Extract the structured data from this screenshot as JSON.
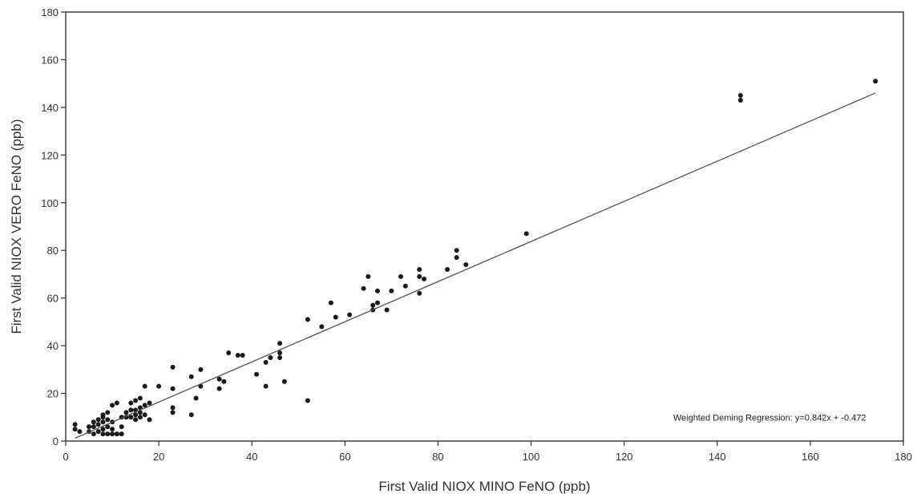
{
  "chart_data": {
    "type": "scatter",
    "title": "",
    "xlabel": "First Valid NIOX MINO FeNO (ppb)",
    "ylabel": "First Valid NIOX VERO FeNO (ppb)",
    "xlim": [
      0,
      180
    ],
    "ylim": [
      0,
      180
    ],
    "xticks": [
      0,
      20,
      40,
      60,
      80,
      100,
      120,
      140,
      160,
      180
    ],
    "yticks": [
      0,
      20,
      40,
      60,
      80,
      100,
      120,
      140,
      160,
      180
    ],
    "grid": false,
    "legend": "none",
    "annotation": "Weighted Deming Regression: y=0.842x + -0.472",
    "regression": {
      "slope": 0.842,
      "intercept": -0.472,
      "x_range": [
        2,
        174
      ]
    },
    "colors": {
      "point": "#1a1a1a",
      "line": "#555555",
      "frame": "#333333"
    },
    "points": [
      [
        2,
        5
      ],
      [
        2,
        7
      ],
      [
        3,
        4
      ],
      [
        5,
        4
      ],
      [
        5,
        6
      ],
      [
        6,
        3
      ],
      [
        6,
        6
      ],
      [
        6,
        8
      ],
      [
        7,
        4
      ],
      [
        7,
        7
      ],
      [
        7,
        9
      ],
      [
        8,
        3
      ],
      [
        8,
        5
      ],
      [
        8,
        8
      ],
      [
        8,
        10
      ],
      [
        8,
        11
      ],
      [
        9,
        3
      ],
      [
        9,
        6
      ],
      [
        9,
        9
      ],
      [
        9,
        12
      ],
      [
        10,
        3
      ],
      [
        10,
        5
      ],
      [
        10,
        8
      ],
      [
        10,
        15
      ],
      [
        11,
        3
      ],
      [
        11,
        16
      ],
      [
        12,
        3
      ],
      [
        12,
        6
      ],
      [
        12,
        10
      ],
      [
        13,
        10
      ],
      [
        13,
        12
      ],
      [
        14,
        10
      ],
      [
        14,
        13
      ],
      [
        14,
        16
      ],
      [
        15,
        9
      ],
      [
        15,
        11
      ],
      [
        15,
        13
      ],
      [
        15,
        17
      ],
      [
        16,
        10
      ],
      [
        16,
        12
      ],
      [
        16,
        14
      ],
      [
        16,
        18
      ],
      [
        17,
        11
      ],
      [
        17,
        15
      ],
      [
        17,
        23
      ],
      [
        18,
        9
      ],
      [
        18,
        16
      ],
      [
        20,
        23
      ],
      [
        23,
        12
      ],
      [
        23,
        14
      ],
      [
        23,
        22
      ],
      [
        23,
        31
      ],
      [
        27,
        11
      ],
      [
        27,
        27
      ],
      [
        28,
        18
      ],
      [
        29,
        23
      ],
      [
        29,
        30
      ],
      [
        33,
        22
      ],
      [
        33,
        26
      ],
      [
        34,
        25
      ],
      [
        35,
        37
      ],
      [
        37,
        36
      ],
      [
        38,
        36
      ],
      [
        41,
        28
      ],
      [
        43,
        23
      ],
      [
        43,
        33
      ],
      [
        44,
        35
      ],
      [
        46,
        35
      ],
      [
        46,
        37
      ],
      [
        46,
        41
      ],
      [
        47,
        25
      ],
      [
        52,
        17
      ],
      [
        52,
        51
      ],
      [
        55,
        48
      ],
      [
        57,
        58
      ],
      [
        58,
        52
      ],
      [
        61,
        53
      ],
      [
        64,
        64
      ],
      [
        65,
        69
      ],
      [
        66,
        55
      ],
      [
        66,
        57
      ],
      [
        67,
        58
      ],
      [
        67,
        63
      ],
      [
        69,
        55
      ],
      [
        70,
        63
      ],
      [
        72,
        69
      ],
      [
        73,
        65
      ],
      [
        76,
        62
      ],
      [
        76,
        69
      ],
      [
        76,
        72
      ],
      [
        77,
        68
      ],
      [
        82,
        72
      ],
      [
        84,
        77
      ],
      [
        84,
        80
      ],
      [
        86,
        74
      ],
      [
        99,
        87
      ],
      [
        145,
        143
      ],
      [
        145,
        145
      ],
      [
        174,
        151
      ]
    ]
  }
}
